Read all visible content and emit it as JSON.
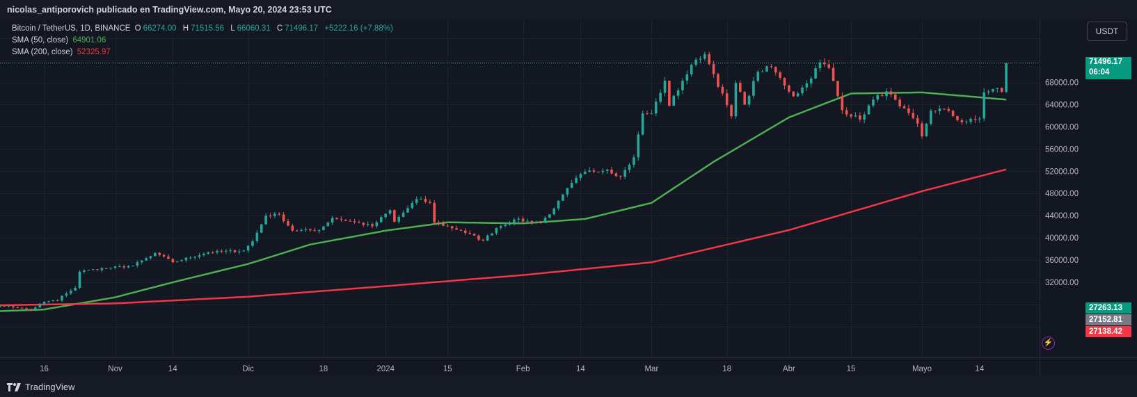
{
  "header": {
    "text": "nicolas_antiporovich publicado en TradingView.com, Mayo 20, 2024 23:53 UTC"
  },
  "legend": {
    "symbol": "Bitcoin / TetherUS, 1D, BINANCE",
    "o_label": "O",
    "o_value": "66274.00",
    "h_label": "H",
    "h_value": "71515.56",
    "l_label": "L",
    "l_value": "66060.31",
    "c_label": "C",
    "c_value": "71496.17",
    "change": "+5222.16 (+7.88%)",
    "sma50_label": "SMA (50, close)",
    "sma50_value": "64901.06",
    "sma200_label": "SMA (200, close)",
    "sma200_value": "52325.97"
  },
  "currency_button": "USDT",
  "price_tags": {
    "last_price": "71496.17",
    "countdown": "06:04",
    "tag_2": "27263.13",
    "tag_3": "27152.81",
    "tag_4": "27138.42"
  },
  "footer": {
    "brand": "TradingView"
  },
  "colors": {
    "up": "#26a69a",
    "down": "#ef5350",
    "sma50": "#4caf50",
    "sma200": "#f23645",
    "background": "#131722"
  },
  "chart_data": {
    "type": "candlestick",
    "symbol": "Bitcoin / TetherUS",
    "interval": "1D",
    "exchange": "BINANCE",
    "y_axis": {
      "ticks": [
        32000,
        36000,
        40000,
        44000,
        48000,
        52000,
        56000,
        60000,
        64000,
        68000
      ]
    },
    "x_axis": {
      "ticks": [
        "16",
        "Nov",
        "14",
        "Dic",
        "18",
        "2024",
        "15",
        "Feb",
        "14",
        "Mar",
        "18",
        "Abr",
        "15",
        "Mayo",
        "14"
      ]
    },
    "ylim": [
      24000,
      79000
    ],
    "close_anchors": [
      [
        "2023-10-01",
        27600
      ],
      [
        "2023-10-08",
        27700
      ],
      [
        "2023-10-10",
        27400
      ],
      [
        "2023-10-13",
        26900
      ],
      [
        "2023-10-16",
        28500
      ],
      [
        "2023-10-19",
        28700
      ],
      [
        "2023-10-20",
        29600
      ],
      [
        "2023-10-23",
        31000
      ],
      [
        "2023-10-24",
        33900
      ],
      [
        "2023-10-26",
        34200
      ],
      [
        "2023-10-31",
        34600
      ],
      [
        "2023-11-05",
        35000
      ],
      [
        "2023-11-09",
        36700
      ],
      [
        "2023-11-10",
        37300
      ],
      [
        "2023-11-14",
        35600
      ],
      [
        "2023-11-22",
        37400
      ],
      [
        "2023-11-30",
        37700
      ],
      [
        "2023-12-02",
        39400
      ],
      [
        "2023-12-05",
        44000
      ],
      [
        "2023-12-08",
        44200
      ],
      [
        "2023-12-11",
        41300
      ],
      [
        "2023-12-17",
        41400
      ],
      [
        "2023-12-20",
        43600
      ],
      [
        "2023-12-24",
        43000
      ],
      [
        "2023-12-29",
        42100
      ],
      [
        "2024-01-02",
        45000
      ],
      [
        "2024-01-03",
        42900
      ],
      [
        "2024-01-08",
        47000
      ],
      [
        "2024-01-11",
        46300
      ],
      [
        "2024-01-12",
        42800
      ],
      [
        "2024-01-18",
        41300
      ],
      [
        "2024-01-23",
        39500
      ],
      [
        "2024-01-26",
        41800
      ],
      [
        "2024-01-30",
        43300
      ],
      [
        "2024-02-05",
        42700
      ],
      [
        "2024-02-08",
        45300
      ],
      [
        "2024-02-12",
        49900
      ],
      [
        "2024-02-15",
        51900
      ],
      [
        "2024-02-20",
        52300
      ],
      [
        "2024-02-23",
        51000
      ],
      [
        "2024-02-26",
        54500
      ],
      [
        "2024-02-28",
        62400
      ],
      [
        "2024-03-01",
        62400
      ],
      [
        "2024-03-04",
        68300
      ],
      [
        "2024-03-05",
        63800
      ],
      [
        "2024-03-08",
        68300
      ],
      [
        "2024-03-11",
        72100
      ],
      [
        "2024-03-13",
        73100
      ],
      [
        "2024-03-15",
        69500
      ],
      [
        "2024-03-19",
        61900
      ],
      [
        "2024-03-20",
        67900
      ],
      [
        "2024-03-22",
        64000
      ],
      [
        "2024-03-25",
        69900
      ],
      [
        "2024-03-28",
        70800
      ],
      [
        "2024-04-02",
        65500
      ],
      [
        "2024-04-05",
        67800
      ],
      [
        "2024-04-08",
        71600
      ],
      [
        "2024-04-10",
        70600
      ],
      [
        "2024-04-13",
        63000
      ],
      [
        "2024-04-17",
        61300
      ],
      [
        "2024-04-20",
        64900
      ],
      [
        "2024-04-23",
        66400
      ],
      [
        "2024-04-26",
        63700
      ],
      [
        "2024-04-30",
        60600
      ],
      [
        "2024-05-01",
        58300
      ],
      [
        "2024-05-03",
        62900
      ],
      [
        "2024-05-06",
        63200
      ],
      [
        "2024-05-10",
        60800
      ],
      [
        "2024-05-14",
        61500
      ],
      [
        "2024-05-15",
        66200
      ],
      [
        "2024-05-18",
        67000
      ],
      [
        "2024-05-19",
        66300
      ],
      [
        "2024-05-20",
        71496
      ]
    ],
    "last": {
      "date": "2024-05-20",
      "open": 66274.0,
      "high": 71515.56,
      "low": 66060.31,
      "close": 71496.17
    },
    "series": [
      {
        "name": "SMA (50, close)",
        "last_value": 64901.06,
        "color": "#4caf50",
        "anchors": [
          [
            "2023-10-01",
            26650
          ],
          [
            "2023-10-16",
            27100
          ],
          [
            "2023-11-01",
            29300
          ],
          [
            "2023-11-15",
            32200
          ],
          [
            "2023-12-01",
            35300
          ],
          [
            "2023-12-15",
            38800
          ],
          [
            "2024-01-01",
            41300
          ],
          [
            "2024-01-15",
            42800
          ],
          [
            "2024-02-01",
            42600
          ],
          [
            "2024-02-15",
            43400
          ],
          [
            "2024-03-01",
            46300
          ],
          [
            "2024-03-15",
            53700
          ],
          [
            "2024-04-01",
            61700
          ],
          [
            "2024-04-15",
            66000
          ],
          [
            "2024-05-01",
            66200
          ],
          [
            "2024-05-20",
            64901
          ]
        ]
      },
      {
        "name": "SMA (200, close)",
        "last_value": 52325.97,
        "color": "#f23645",
        "anchors": [
          [
            "2023-10-01",
            27800
          ],
          [
            "2023-11-01",
            28200
          ],
          [
            "2023-12-01",
            29400
          ],
          [
            "2024-01-01",
            31300
          ],
          [
            "2024-02-01",
            33300
          ],
          [
            "2024-03-01",
            35600
          ],
          [
            "2024-04-01",
            41400
          ],
          [
            "2024-05-01",
            48400
          ],
          [
            "2024-05-20",
            52326
          ]
        ]
      }
    ]
  }
}
